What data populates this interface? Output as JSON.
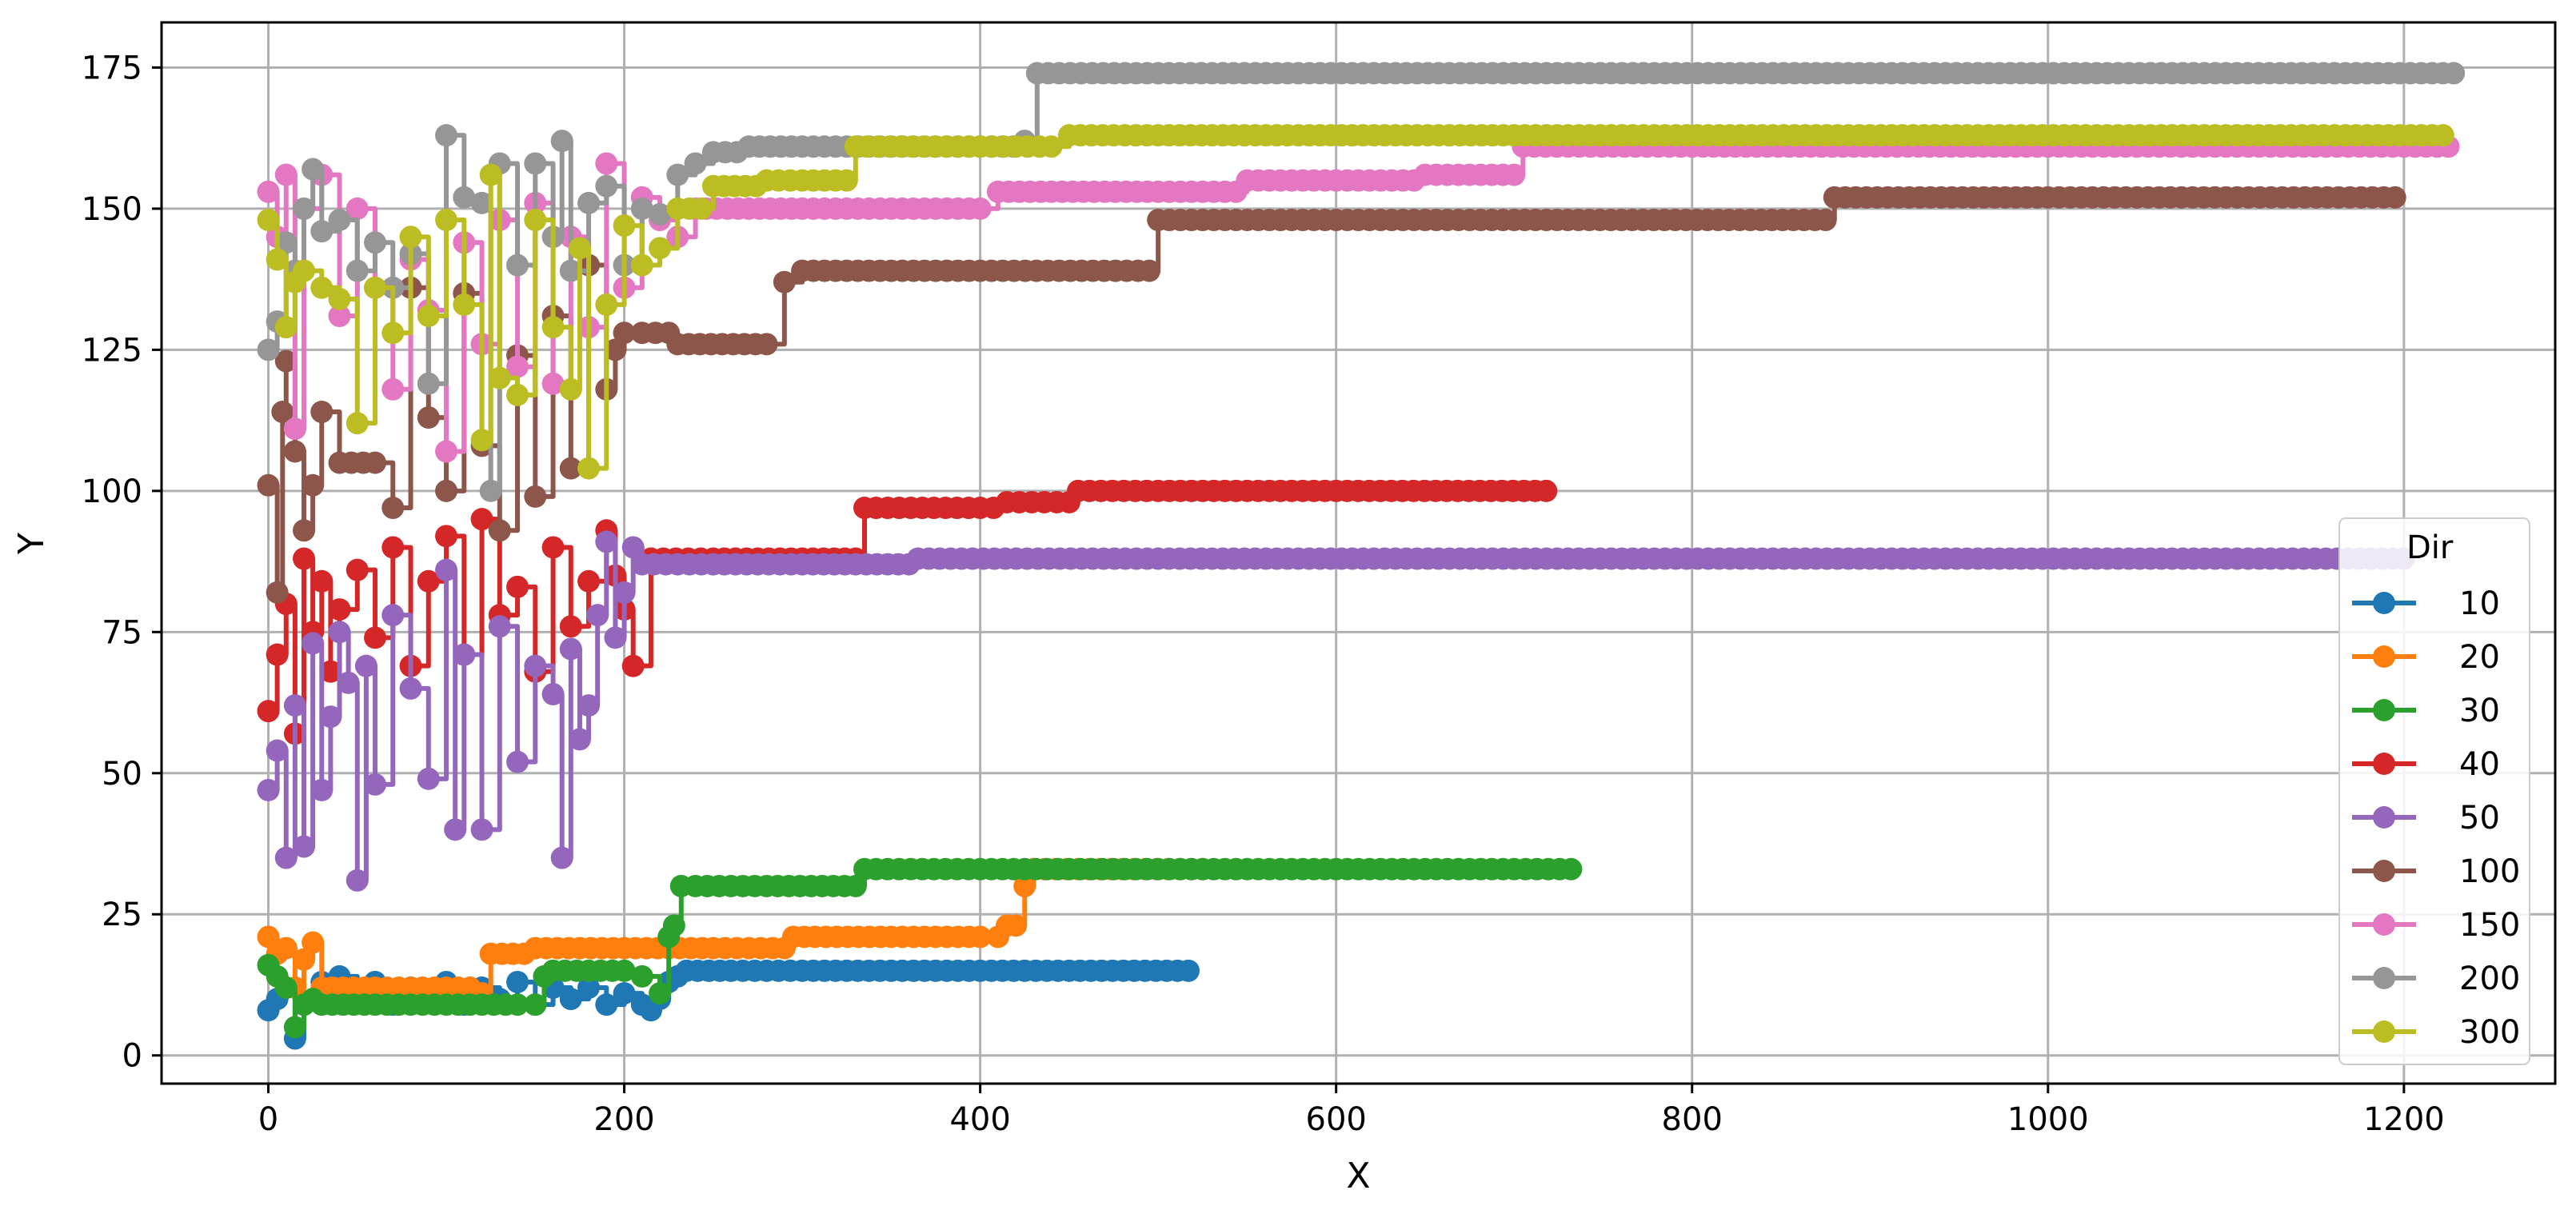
{
  "chart_data": {
    "type": "line",
    "title": "",
    "xlabel": "X",
    "ylabel": "Y",
    "xlim": [
      -60,
      1285
    ],
    "ylim": [
      -5,
      183
    ],
    "xticks": [
      0,
      200,
      400,
      600,
      800,
      1000,
      1200
    ],
    "yticks": [
      0,
      25,
      50,
      75,
      100,
      125,
      150,
      175
    ],
    "grid": true,
    "legend": {
      "title": "Dir",
      "placement": "lower-right"
    },
    "series": [
      {
        "name": "10",
        "color": "#1f77b4",
        "x": [
          0,
          5,
          10,
          15,
          20,
          30,
          40,
          50,
          60,
          70,
          80,
          90,
          100,
          110,
          120,
          130,
          140,
          150,
          160,
          170,
          180,
          190,
          200,
          210,
          215,
          220,
          225,
          230,
          235,
          260,
          300,
          350,
          400,
          450,
          517
        ],
        "y": [
          8,
          10,
          12,
          3,
          9,
          13,
          14,
          10,
          13,
          9,
          12,
          10,
          13,
          9,
          12,
          10,
          13,
          9,
          12,
          10,
          12,
          9,
          11,
          9,
          8,
          10,
          13,
          14,
          15,
          15,
          15,
          15,
          15,
          15,
          15
        ]
      },
      {
        "name": "20",
        "color": "#ff7f0e",
        "x": [
          0,
          5,
          10,
          15,
          20,
          25,
          30,
          60,
          100,
          120,
          125,
          150,
          200,
          250,
          290,
          295,
          350,
          400,
          410,
          415,
          420,
          425,
          430,
          480,
          525
        ],
        "y": [
          21,
          18,
          19,
          12,
          17,
          20,
          12,
          12,
          12,
          11,
          18,
          19,
          19,
          19,
          19,
          21,
          21,
          21,
          21,
          23,
          23,
          30,
          33,
          33,
          33
        ]
      },
      {
        "name": "30",
        "color": "#2ca02c",
        "x": [
          0,
          5,
          10,
          15,
          20,
          25,
          30,
          60,
          100,
          140,
          150,
          155,
          160,
          180,
          200,
          210,
          220,
          225,
          228,
          232,
          240,
          280,
          330,
          335,
          400,
          500,
          600,
          700,
          732
        ],
        "y": [
          16,
          14,
          12,
          5,
          9,
          10,
          9,
          9,
          9,
          9,
          9,
          14,
          15,
          15,
          15,
          14,
          11,
          21,
          23,
          30,
          30,
          30,
          30,
          33,
          33,
          33,
          33,
          33,
          33
        ]
      },
      {
        "name": "40",
        "color": "#d62728",
        "x": [
          0,
          5,
          10,
          15,
          20,
          25,
          30,
          35,
          40,
          50,
          60,
          70,
          80,
          90,
          100,
          110,
          120,
          130,
          140,
          150,
          160,
          170,
          180,
          190,
          195,
          200,
          205,
          215,
          250,
          300,
          330,
          335,
          400,
          415,
          450,
          455,
          500,
          600,
          718
        ],
        "y": [
          61,
          71,
          80,
          57,
          88,
          75,
          84,
          68,
          79,
          86,
          74,
          90,
          69,
          84,
          92,
          71,
          95,
          78,
          83,
          68,
          90,
          76,
          84,
          93,
          85,
          79,
          69,
          88,
          88,
          88,
          88,
          97,
          97,
          98,
          98,
          100,
          100,
          100,
          100
        ]
      },
      {
        "name": "50",
        "color": "#9467bd",
        "x": [
          0,
          5,
          10,
          15,
          20,
          25,
          30,
          35,
          40,
          45,
          50,
          55,
          60,
          70,
          80,
          90,
          100,
          105,
          110,
          120,
          130,
          140,
          150,
          160,
          165,
          170,
          175,
          180,
          185,
          190,
          195,
          200,
          205,
          210,
          250,
          300,
          360,
          365,
          500,
          700,
          900,
          1100,
          1200
        ],
        "y": [
          47,
          54,
          35,
          62,
          37,
          73,
          47,
          60,
          75,
          66,
          31,
          69,
          48,
          78,
          65,
          49,
          86,
          40,
          71,
          40,
          76,
          52,
          69,
          64,
          35,
          72,
          56,
          62,
          78,
          91,
          74,
          82,
          90,
          87,
          87,
          87,
          87,
          88,
          88,
          88,
          88,
          88,
          88
        ]
      },
      {
        "name": "100",
        "color": "#8c564b",
        "x": [
          0,
          5,
          8,
          10,
          15,
          20,
          25,
          30,
          40,
          60,
          70,
          80,
          90,
          100,
          110,
          120,
          130,
          140,
          150,
          160,
          170,
          180,
          190,
          195,
          200,
          210,
          225,
          230,
          280,
          290,
          300,
          400,
          495,
          500,
          600,
          700,
          875,
          880,
          1000,
          1100,
          1195
        ],
        "y": [
          101,
          82,
          114,
          123,
          107,
          93,
          101,
          114,
          105,
          105,
          97,
          136,
          113,
          100,
          135,
          108,
          93,
          124,
          99,
          131,
          104,
          140,
          118,
          125,
          128,
          128,
          128,
          126,
          126,
          137,
          139,
          139,
          139,
          148,
          148,
          148,
          148,
          152,
          152,
          152,
          152
        ]
      },
      {
        "name": "150",
        "color": "#e377c2",
        "x": [
          0,
          5,
          10,
          15,
          20,
          30,
          40,
          50,
          60,
          70,
          80,
          90,
          100,
          110,
          120,
          130,
          140,
          150,
          160,
          170,
          180,
          190,
          200,
          210,
          220,
          230,
          240,
          300,
          400,
          410,
          500,
          550,
          600,
          650,
          700,
          705,
          800,
          1000,
          1100,
          1225
        ],
        "y": [
          153,
          145,
          156,
          111,
          150,
          156,
          131,
          150,
          136,
          118,
          141,
          132,
          107,
          144,
          126,
          148,
          122,
          151,
          119,
          145,
          129,
          158,
          136,
          152,
          148,
          145,
          150,
          150,
          150,
          153,
          153,
          155,
          155,
          156,
          156,
          161,
          161,
          161,
          161,
          161
        ]
      },
      {
        "name": "200",
        "color": "#969696",
        "x": [
          0,
          5,
          10,
          15,
          20,
          25,
          30,
          40,
          50,
          60,
          70,
          80,
          90,
          100,
          110,
          120,
          125,
          130,
          140,
          150,
          160,
          165,
          170,
          180,
          190,
          200,
          210,
          220,
          230,
          240,
          250,
          270,
          300,
          400,
          425,
          432,
          500,
          700,
          900,
          1100,
          1228
        ],
        "y": [
          125,
          130,
          144,
          139,
          150,
          157,
          146,
          148,
          139,
          144,
          136,
          142,
          119,
          163,
          152,
          151,
          100,
          158,
          140,
          158,
          145,
          162,
          139,
          151,
          154,
          140,
          150,
          149,
          156,
          158,
          160,
          161,
          161,
          161,
          162,
          174,
          174,
          174,
          174,
          174,
          174
        ]
      },
      {
        "name": "300",
        "color": "#bcbd22",
        "x": [
          0,
          5,
          10,
          15,
          20,
          30,
          40,
          50,
          60,
          70,
          80,
          90,
          100,
          110,
          120,
          125,
          130,
          140,
          150,
          160,
          170,
          175,
          180,
          190,
          200,
          210,
          220,
          230,
          250,
          280,
          300,
          325,
          330,
          400,
          440,
          450,
          500,
          700,
          900,
          1100,
          1222
        ],
        "y": [
          148,
          141,
          129,
          137,
          139,
          136,
          134,
          112,
          136,
          128,
          145,
          131,
          148,
          133,
          109,
          156,
          120,
          117,
          148,
          129,
          118,
          143,
          104,
          133,
          147,
          140,
          143,
          150,
          154,
          155,
          155,
          155,
          161,
          161,
          161,
          163,
          163,
          163,
          163,
          163,
          163
        ]
      }
    ]
  }
}
